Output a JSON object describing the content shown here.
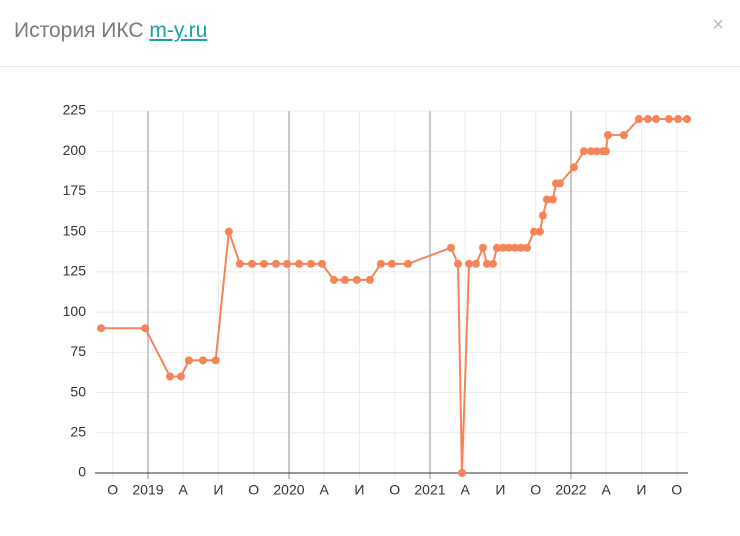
{
  "header": {
    "title": "История ИКС",
    "link": "m-y.ru",
    "close": "×"
  },
  "chart_data": {
    "type": "line",
    "color": "#f5845a",
    "grid": true,
    "x": [
      2018.667,
      2018.98,
      2019.156,
      2019.234,
      2019.29,
      2019.39,
      2019.48,
      2019.574,
      2019.652,
      2019.738,
      2019.823,
      2019.908,
      2019.986,
      2020.071,
      2020.156,
      2020.234,
      2020.319,
      2020.397,
      2020.482,
      2020.574,
      2020.652,
      2020.73,
      2020.844,
      2021.149,
      2021.199,
      2021.227,
      2021.277,
      2021.326,
      2021.376,
      2021.404,
      2021.447,
      2021.475,
      2021.518,
      2021.56,
      2021.603,
      2021.645,
      2021.688,
      2021.738,
      2021.78,
      2021.801,
      2021.83,
      2021.872,
      2021.894,
      2021.922,
      2022.021,
      2022.092,
      2022.142,
      2022.184,
      2022.227,
      2022.248,
      2022.262,
      2022.376,
      2022.482,
      2022.546,
      2022.603,
      2022.695,
      2022.759,
      2022.823
    ],
    "values": [
      90,
      90,
      60,
      60,
      70,
      70,
      70,
      150,
      130,
      130,
      130,
      130,
      130,
      130,
      130,
      130,
      120,
      120,
      120,
      120,
      130,
      130,
      130,
      140,
      130,
      0,
      130,
      130,
      140,
      130,
      130,
      140,
      140,
      140,
      140,
      140,
      140,
      150,
      150,
      160,
      170,
      170,
      180,
      180,
      190,
      200,
      200,
      200,
      200,
      200,
      210,
      210,
      220,
      220,
      220,
      220,
      220,
      220
    ],
    "xlim": [
      2018.667,
      2022.83
    ],
    "xticks": [
      {
        "value": 2018.75,
        "label": "О"
      },
      2019,
      {
        "value": 2019.25,
        "label": "А"
      },
      {
        "value": 2019.5,
        "label": "И"
      },
      {
        "value": 2019.75,
        "label": "О"
      },
      2020,
      {
        "value": 2020.25,
        "label": "А"
      },
      {
        "value": 2020.5,
        "label": "И"
      },
      {
        "value": 2020.75,
        "label": "О"
      },
      2021,
      {
        "value": 2021.25,
        "label": "А"
      },
      {
        "value": 2021.5,
        "label": "И"
      },
      {
        "value": 2021.75,
        "label": "О"
      },
      2022,
      {
        "value": 2022.25,
        "label": "А"
      },
      {
        "value": 2022.5,
        "label": "И"
      },
      {
        "value": 2022.75,
        "label": "О"
      }
    ],
    "ylim": [
      0,
      225
    ],
    "yticks": [
      0,
      25,
      50,
      75,
      100,
      125,
      150,
      175,
      200,
      225
    ]
  }
}
